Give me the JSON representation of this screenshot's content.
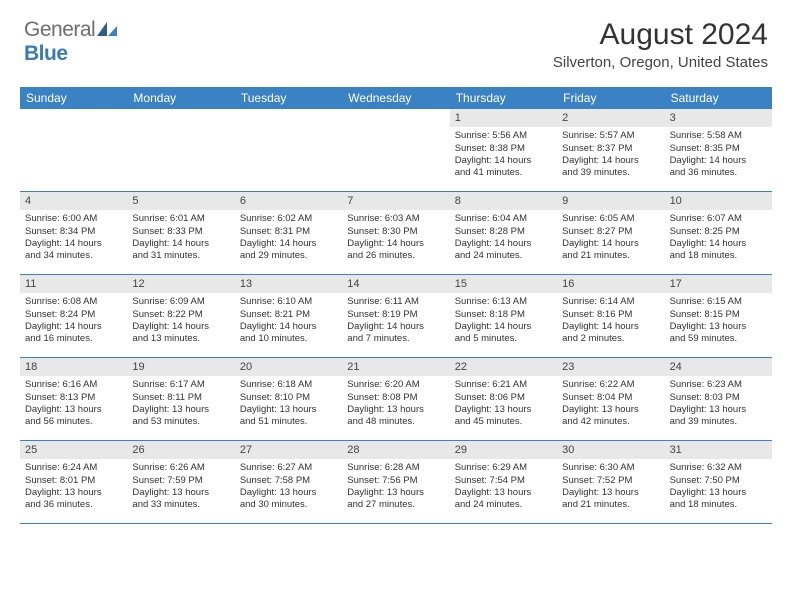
{
  "logo": {
    "general": "General",
    "blue": "Blue"
  },
  "title": "August 2024",
  "location": "Silverton, Oregon, United States",
  "colors": {
    "header_bg": "#3a82c4",
    "header_text": "#ffffff",
    "daynum_bg": "#e8e8e8",
    "border": "#3a82c4",
    "logo_gray": "#6e6e6e",
    "logo_blue": "#3a7ab5"
  },
  "day_names": [
    "Sunday",
    "Monday",
    "Tuesday",
    "Wednesday",
    "Thursday",
    "Friday",
    "Saturday"
  ],
  "weeks": [
    [
      null,
      null,
      null,
      null,
      {
        "n": "1",
        "sr": "Sunrise: 5:56 AM",
        "ss": "Sunset: 8:38 PM",
        "dl1": "Daylight: 14 hours",
        "dl2": "and 41 minutes."
      },
      {
        "n": "2",
        "sr": "Sunrise: 5:57 AM",
        "ss": "Sunset: 8:37 PM",
        "dl1": "Daylight: 14 hours",
        "dl2": "and 39 minutes."
      },
      {
        "n": "3",
        "sr": "Sunrise: 5:58 AM",
        "ss": "Sunset: 8:35 PM",
        "dl1": "Daylight: 14 hours",
        "dl2": "and 36 minutes."
      }
    ],
    [
      {
        "n": "4",
        "sr": "Sunrise: 6:00 AM",
        "ss": "Sunset: 8:34 PM",
        "dl1": "Daylight: 14 hours",
        "dl2": "and 34 minutes."
      },
      {
        "n": "5",
        "sr": "Sunrise: 6:01 AM",
        "ss": "Sunset: 8:33 PM",
        "dl1": "Daylight: 14 hours",
        "dl2": "and 31 minutes."
      },
      {
        "n": "6",
        "sr": "Sunrise: 6:02 AM",
        "ss": "Sunset: 8:31 PM",
        "dl1": "Daylight: 14 hours",
        "dl2": "and 29 minutes."
      },
      {
        "n": "7",
        "sr": "Sunrise: 6:03 AM",
        "ss": "Sunset: 8:30 PM",
        "dl1": "Daylight: 14 hours",
        "dl2": "and 26 minutes."
      },
      {
        "n": "8",
        "sr": "Sunrise: 6:04 AM",
        "ss": "Sunset: 8:28 PM",
        "dl1": "Daylight: 14 hours",
        "dl2": "and 24 minutes."
      },
      {
        "n": "9",
        "sr": "Sunrise: 6:05 AM",
        "ss": "Sunset: 8:27 PM",
        "dl1": "Daylight: 14 hours",
        "dl2": "and 21 minutes."
      },
      {
        "n": "10",
        "sr": "Sunrise: 6:07 AM",
        "ss": "Sunset: 8:25 PM",
        "dl1": "Daylight: 14 hours",
        "dl2": "and 18 minutes."
      }
    ],
    [
      {
        "n": "11",
        "sr": "Sunrise: 6:08 AM",
        "ss": "Sunset: 8:24 PM",
        "dl1": "Daylight: 14 hours",
        "dl2": "and 16 minutes."
      },
      {
        "n": "12",
        "sr": "Sunrise: 6:09 AM",
        "ss": "Sunset: 8:22 PM",
        "dl1": "Daylight: 14 hours",
        "dl2": "and 13 minutes."
      },
      {
        "n": "13",
        "sr": "Sunrise: 6:10 AM",
        "ss": "Sunset: 8:21 PM",
        "dl1": "Daylight: 14 hours",
        "dl2": "and 10 minutes."
      },
      {
        "n": "14",
        "sr": "Sunrise: 6:11 AM",
        "ss": "Sunset: 8:19 PM",
        "dl1": "Daylight: 14 hours",
        "dl2": "and 7 minutes."
      },
      {
        "n": "15",
        "sr": "Sunrise: 6:13 AM",
        "ss": "Sunset: 8:18 PM",
        "dl1": "Daylight: 14 hours",
        "dl2": "and 5 minutes."
      },
      {
        "n": "16",
        "sr": "Sunrise: 6:14 AM",
        "ss": "Sunset: 8:16 PM",
        "dl1": "Daylight: 14 hours",
        "dl2": "and 2 minutes."
      },
      {
        "n": "17",
        "sr": "Sunrise: 6:15 AM",
        "ss": "Sunset: 8:15 PM",
        "dl1": "Daylight: 13 hours",
        "dl2": "and 59 minutes."
      }
    ],
    [
      {
        "n": "18",
        "sr": "Sunrise: 6:16 AM",
        "ss": "Sunset: 8:13 PM",
        "dl1": "Daylight: 13 hours",
        "dl2": "and 56 minutes."
      },
      {
        "n": "19",
        "sr": "Sunrise: 6:17 AM",
        "ss": "Sunset: 8:11 PM",
        "dl1": "Daylight: 13 hours",
        "dl2": "and 53 minutes."
      },
      {
        "n": "20",
        "sr": "Sunrise: 6:18 AM",
        "ss": "Sunset: 8:10 PM",
        "dl1": "Daylight: 13 hours",
        "dl2": "and 51 minutes."
      },
      {
        "n": "21",
        "sr": "Sunrise: 6:20 AM",
        "ss": "Sunset: 8:08 PM",
        "dl1": "Daylight: 13 hours",
        "dl2": "and 48 minutes."
      },
      {
        "n": "22",
        "sr": "Sunrise: 6:21 AM",
        "ss": "Sunset: 8:06 PM",
        "dl1": "Daylight: 13 hours",
        "dl2": "and 45 minutes."
      },
      {
        "n": "23",
        "sr": "Sunrise: 6:22 AM",
        "ss": "Sunset: 8:04 PM",
        "dl1": "Daylight: 13 hours",
        "dl2": "and 42 minutes."
      },
      {
        "n": "24",
        "sr": "Sunrise: 6:23 AM",
        "ss": "Sunset: 8:03 PM",
        "dl1": "Daylight: 13 hours",
        "dl2": "and 39 minutes."
      }
    ],
    [
      {
        "n": "25",
        "sr": "Sunrise: 6:24 AM",
        "ss": "Sunset: 8:01 PM",
        "dl1": "Daylight: 13 hours",
        "dl2": "and 36 minutes."
      },
      {
        "n": "26",
        "sr": "Sunrise: 6:26 AM",
        "ss": "Sunset: 7:59 PM",
        "dl1": "Daylight: 13 hours",
        "dl2": "and 33 minutes."
      },
      {
        "n": "27",
        "sr": "Sunrise: 6:27 AM",
        "ss": "Sunset: 7:58 PM",
        "dl1": "Daylight: 13 hours",
        "dl2": "and 30 minutes."
      },
      {
        "n": "28",
        "sr": "Sunrise: 6:28 AM",
        "ss": "Sunset: 7:56 PM",
        "dl1": "Daylight: 13 hours",
        "dl2": "and 27 minutes."
      },
      {
        "n": "29",
        "sr": "Sunrise: 6:29 AM",
        "ss": "Sunset: 7:54 PM",
        "dl1": "Daylight: 13 hours",
        "dl2": "and 24 minutes."
      },
      {
        "n": "30",
        "sr": "Sunrise: 6:30 AM",
        "ss": "Sunset: 7:52 PM",
        "dl1": "Daylight: 13 hours",
        "dl2": "and 21 minutes."
      },
      {
        "n": "31",
        "sr": "Sunrise: 6:32 AM",
        "ss": "Sunset: 7:50 PM",
        "dl1": "Daylight: 13 hours",
        "dl2": "and 18 minutes."
      }
    ]
  ]
}
